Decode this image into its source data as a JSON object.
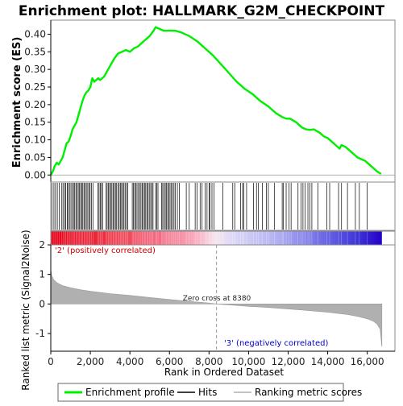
{
  "chart_data": {
    "type": "line",
    "title": "Enrichment plot: HALLMARK_G2M_CHECKPOINT",
    "es_panel": {
      "ylabel": "Enrichment score (ES)",
      "ylim": [
        -0.02,
        0.44
      ],
      "yticks": [
        0.0,
        0.05,
        0.1,
        0.15,
        0.2,
        0.25,
        0.3,
        0.35,
        0.4
      ],
      "ytick_labels": [
        "0.00",
        "0.05",
        "0.10",
        "0.15",
        "0.20",
        "0.25",
        "0.30",
        "0.35",
        "0.40"
      ],
      "zero_line": true,
      "line_color": "#00ee00",
      "series": [
        {
          "x": [
            0,
            100,
            200,
            300,
            400,
            500,
            600,
            700,
            800,
            900,
            1000,
            1100,
            1200,
            1300,
            1400,
            1500,
            1600,
            1700,
            1800,
            1900,
            2000,
            2100,
            2200,
            2300,
            2400,
            2500,
            2600,
            2700,
            2800,
            2900,
            3000,
            3200,
            3400,
            3600,
            3800,
            4000,
            4200,
            4400,
            4600,
            4800,
            5000,
            5200,
            5300,
            5500,
            5700,
            5900,
            6100,
            6300,
            6600,
            7000,
            7400,
            7800,
            8200,
            8600,
            9000,
            9400,
            9800,
            10200,
            10600,
            11000,
            11400,
            11700,
            11900,
            12100,
            12400,
            12700,
            12900,
            13100,
            13300,
            13600,
            13800,
            14000,
            14200,
            14400,
            14600,
            14700,
            14900,
            15100,
            15300,
            15500,
            15700,
            15900,
            16100,
            16300,
            16500,
            16700
          ],
          "y": [
            0.0,
            0.01,
            0.025,
            0.035,
            0.03,
            0.04,
            0.05,
            0.07,
            0.09,
            0.095,
            0.11,
            0.13,
            0.14,
            0.15,
            0.17,
            0.19,
            0.21,
            0.225,
            0.235,
            0.24,
            0.25,
            0.275,
            0.265,
            0.27,
            0.275,
            0.27,
            0.275,
            0.28,
            0.29,
            0.3,
            0.31,
            0.33,
            0.345,
            0.35,
            0.355,
            0.35,
            0.36,
            0.365,
            0.375,
            0.385,
            0.395,
            0.41,
            0.42,
            0.415,
            0.41,
            0.41,
            0.41,
            0.41,
            0.405,
            0.395,
            0.38,
            0.36,
            0.34,
            0.315,
            0.29,
            0.265,
            0.245,
            0.23,
            0.21,
            0.195,
            0.175,
            0.165,
            0.16,
            0.16,
            0.15,
            0.135,
            0.13,
            0.128,
            0.13,
            0.12,
            0.11,
            0.105,
            0.095,
            0.085,
            0.075,
            0.085,
            0.08,
            0.07,
            0.06,
            0.05,
            0.045,
            0.04,
            0.03,
            0.02,
            0.01,
            0.003
          ]
        }
      ]
    },
    "hits_panel": {
      "hit_positions": [
        60,
        160,
        240,
        330,
        430,
        560,
        620,
        700,
        760,
        830,
        880,
        950,
        1020,
        1090,
        1150,
        1210,
        1270,
        1330,
        1390,
        1450,
        1510,
        1560,
        1620,
        1680,
        1740,
        1800,
        1870,
        1930,
        1990,
        2060,
        2130,
        2380,
        2440,
        2500,
        2560,
        2620,
        2800,
        2850,
        2910,
        2970,
        3030,
        3090,
        3150,
        3210,
        3270,
        3330,
        3400,
        3460,
        3520,
        3580,
        3640,
        3700,
        3760,
        3830,
        3890,
        4120,
        4180,
        4240,
        4300,
        4360,
        4430,
        4500,
        4560,
        4620,
        4680,
        4740,
        4800,
        4860,
        4920,
        4980,
        5050,
        5110,
        5170,
        5300,
        5360,
        5420,
        5600,
        5660,
        5720,
        5790,
        5850,
        5910,
        5970,
        6030,
        6100,
        6160,
        6230,
        6300,
        6400,
        6500,
        6850,
        7000,
        7300,
        7400,
        7550,
        7650,
        7800,
        7900,
        8000,
        8050,
        8150,
        8250,
        8700,
        9200,
        9300,
        9600,
        9700,
        9750,
        9900,
        10250,
        10400,
        10500,
        10700,
        10900,
        11000,
        11300,
        11700,
        11750,
        11900,
        12050,
        12150,
        12500,
        12650,
        12750,
        12850,
        13000,
        13100,
        13200,
        13500,
        13950,
        14100,
        14550,
        14700,
        15000,
        15400,
        15600,
        16000
      ]
    },
    "ranking_panel": {
      "ylabel": "Ranked list metric (Signal2Noise)",
      "xlabel": "Rank in Ordered Dataset",
      "ylim": [
        -1.6,
        2.0
      ],
      "yticks": [
        -1,
        0,
        1,
        2
      ],
      "xticks": [
        0,
        2000,
        4000,
        6000,
        8000,
        10000,
        12000,
        14000,
        16000
      ],
      "xtick_labels": [
        "0",
        "2,000",
        "4,000",
        "6,000",
        "8,000",
        "10,000",
        "12,000",
        "14,000",
        "16,000"
      ],
      "xlim": [
        0,
        17400
      ],
      "n_genes": 16740,
      "zero_cross": 8380,
      "zero_cross_label": "Zero cross at 8380",
      "pos_label": "'2' (positively correlated)",
      "neg_label": "'3' (negatively correlated)",
      "pos_label_color": "#cc0000",
      "neg_label_color": "#0000cc",
      "metric_curve": {
        "x": [
          0,
          50,
          150,
          300,
          600,
          1000,
          1500,
          2000,
          3000,
          4000,
          5000,
          6000,
          7000,
          8000,
          8380,
          9000,
          10000,
          11000,
          12000,
          13000,
          14000,
          15000,
          15500,
          16000,
          16300,
          16500,
          16650,
          16740
        ],
        "y": [
          1.2,
          0.95,
          0.82,
          0.72,
          0.62,
          0.55,
          0.48,
          0.43,
          0.35,
          0.29,
          0.22,
          0.15,
          0.09,
          0.03,
          0.0,
          -0.03,
          -0.08,
          -0.12,
          -0.17,
          -0.22,
          -0.28,
          -0.36,
          -0.42,
          -0.5,
          -0.58,
          -0.68,
          -0.85,
          -1.45
        ]
      },
      "fill_color": "#b0b0b0"
    },
    "legend": [
      {
        "label": "Enrichment profile",
        "color": "#00ee00",
        "style": "thick-line"
      },
      {
        "label": "Hits",
        "color": "#000000",
        "style": "line"
      },
      {
        "label": "Ranking metric scores",
        "color": "#b0b0b0",
        "style": "line"
      }
    ]
  }
}
